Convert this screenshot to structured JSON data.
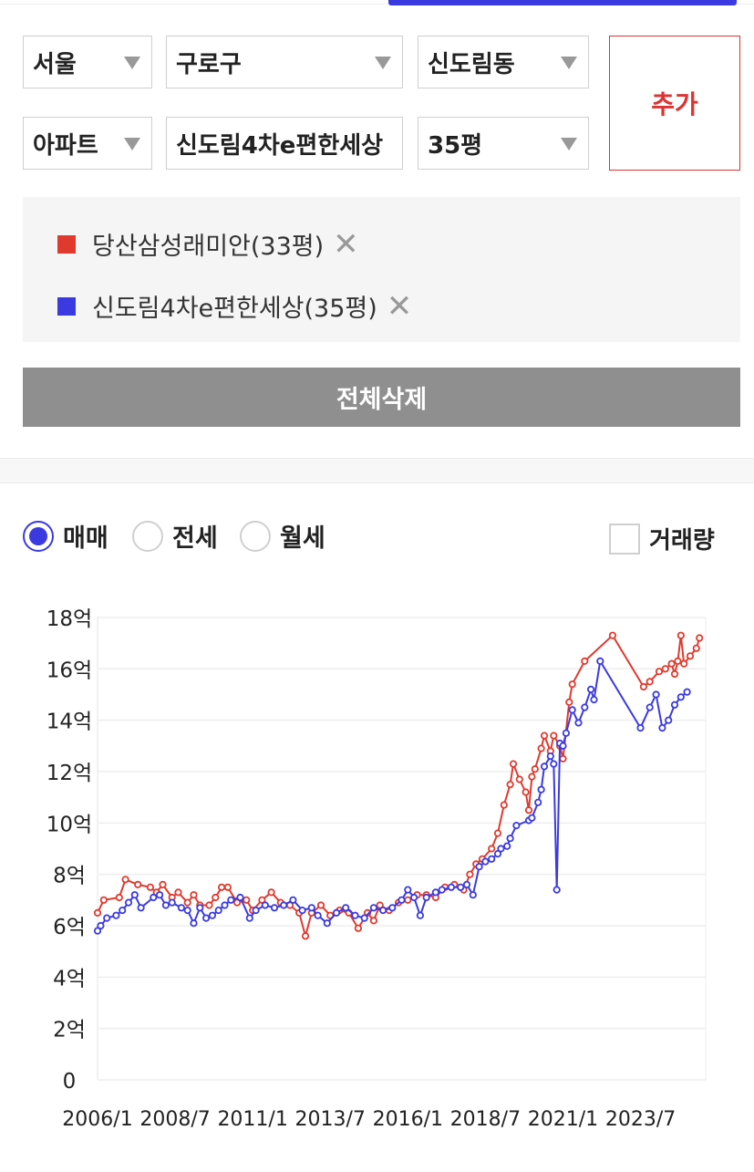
{
  "filters": {
    "city": "서울",
    "district": "구로구",
    "dong": "신도림동",
    "type": "아파트",
    "complex": "신도림4차e편한세상",
    "size": "35평"
  },
  "add_label": "추가",
  "selected": [
    {
      "label": "당산삼성래미안(33평)",
      "color": "#e03a2e"
    },
    {
      "label": "신도림4차e편한세상(35평)",
      "color": "#3a3ae0"
    }
  ],
  "delete_all_label": "전체삭제",
  "deal_types": {
    "sale": "매매",
    "jeonse": "전세",
    "wolse": "월세",
    "selected": "매매"
  },
  "volume_label": "거래량",
  "chart_data": {
    "type": "line",
    "ylabel": "",
    "xlabel": "",
    "ylim": [
      0,
      18
    ],
    "y_ticks": [
      "0",
      "2억",
      "4억",
      "6억",
      "8억",
      "10억",
      "12억",
      "14억",
      "16억",
      "18억"
    ],
    "x_ticks": [
      "2006/1",
      "2008/7",
      "2011/1",
      "2013/7",
      "2016/1",
      "2018/7",
      "2021/1",
      "2023/7"
    ],
    "x_range": [
      2006.0,
      2025.6
    ],
    "grid": true,
    "series": [
      {
        "name": "당산삼성래미안(33평)",
        "color": "#e03a2e",
        "points": [
          [
            2006.0,
            6.5
          ],
          [
            2006.2,
            7.0
          ],
          [
            2006.7,
            7.1
          ],
          [
            2006.9,
            7.8
          ],
          [
            2007.3,
            7.6
          ],
          [
            2007.7,
            7.5
          ],
          [
            2007.9,
            7.3
          ],
          [
            2008.1,
            7.6
          ],
          [
            2008.4,
            7.1
          ],
          [
            2008.6,
            7.3
          ],
          [
            2008.9,
            6.9
          ],
          [
            2009.1,
            7.2
          ],
          [
            2009.3,
            6.8
          ],
          [
            2009.6,
            6.8
          ],
          [
            2009.8,
            7.1
          ],
          [
            2010.0,
            7.5
          ],
          [
            2010.2,
            7.5
          ],
          [
            2010.5,
            6.9
          ],
          [
            2010.8,
            7.0
          ],
          [
            2011.0,
            6.6
          ],
          [
            2011.3,
            7.0
          ],
          [
            2011.6,
            7.3
          ],
          [
            2011.9,
            6.9
          ],
          [
            2012.2,
            6.8
          ],
          [
            2012.5,
            6.5
          ],
          [
            2012.7,
            5.6
          ],
          [
            2012.9,
            6.5
          ],
          [
            2013.2,
            6.8
          ],
          [
            2013.5,
            6.4
          ],
          [
            2013.8,
            6.6
          ],
          [
            2014.1,
            6.5
          ],
          [
            2014.4,
            5.9
          ],
          [
            2014.7,
            6.5
          ],
          [
            2014.9,
            6.2
          ],
          [
            2015.1,
            6.8
          ],
          [
            2015.4,
            6.6
          ],
          [
            2015.7,
            6.9
          ],
          [
            2016.0,
            7.0
          ],
          [
            2016.3,
            7.2
          ],
          [
            2016.6,
            7.2
          ],
          [
            2016.9,
            7.1
          ],
          [
            2017.2,
            7.5
          ],
          [
            2017.5,
            7.6
          ],
          [
            2017.8,
            7.4
          ],
          [
            2018.0,
            8.0
          ],
          [
            2018.2,
            8.4
          ],
          [
            2018.4,
            8.6
          ],
          [
            2018.7,
            9.0
          ],
          [
            2018.9,
            9.6
          ],
          [
            2019.1,
            10.7
          ],
          [
            2019.3,
            11.5
          ],
          [
            2019.4,
            12.3
          ],
          [
            2019.6,
            11.7
          ],
          [
            2019.8,
            11.2
          ],
          [
            2019.9,
            10.5
          ],
          [
            2020.0,
            11.8
          ],
          [
            2020.1,
            12.1
          ],
          [
            2020.3,
            12.9
          ],
          [
            2020.4,
            13.4
          ],
          [
            2020.6,
            12.8
          ],
          [
            2020.7,
            13.4
          ],
          [
            2020.9,
            13.0
          ],
          [
            2021.0,
            12.5
          ],
          [
            2021.2,
            14.7
          ],
          [
            2021.3,
            15.4
          ],
          [
            2021.7,
            16.3
          ],
          [
            2022.6,
            17.3
          ],
          [
            2023.6,
            15.3
          ],
          [
            2023.8,
            15.5
          ],
          [
            2024.1,
            15.9
          ],
          [
            2024.3,
            16.0
          ],
          [
            2024.5,
            16.2
          ],
          [
            2024.6,
            15.8
          ],
          [
            2024.7,
            16.3
          ],
          [
            2024.8,
            17.3
          ],
          [
            2024.9,
            16.2
          ],
          [
            2025.1,
            16.5
          ],
          [
            2025.3,
            16.8
          ],
          [
            2025.4,
            17.2
          ]
        ]
      },
      {
        "name": "신도림4차e편한세상(35평)",
        "color": "#3a3ae0",
        "points": [
          [
            2006.0,
            5.8
          ],
          [
            2006.1,
            6.0
          ],
          [
            2006.3,
            6.3
          ],
          [
            2006.6,
            6.4
          ],
          [
            2006.8,
            6.6
          ],
          [
            2007.0,
            6.9
          ],
          [
            2007.2,
            7.2
          ],
          [
            2007.4,
            6.7
          ],
          [
            2007.8,
            7.1
          ],
          [
            2008.0,
            7.2
          ],
          [
            2008.2,
            6.8
          ],
          [
            2008.4,
            6.9
          ],
          [
            2008.7,
            6.7
          ],
          [
            2008.9,
            6.6
          ],
          [
            2009.1,
            6.1
          ],
          [
            2009.3,
            6.7
          ],
          [
            2009.5,
            6.3
          ],
          [
            2009.7,
            6.4
          ],
          [
            2009.9,
            6.6
          ],
          [
            2010.1,
            6.8
          ],
          [
            2010.3,
            7.0
          ],
          [
            2010.6,
            7.1
          ],
          [
            2010.9,
            6.3
          ],
          [
            2011.1,
            6.6
          ],
          [
            2011.4,
            6.8
          ],
          [
            2011.7,
            6.7
          ],
          [
            2012.0,
            6.8
          ],
          [
            2012.3,
            7.0
          ],
          [
            2012.6,
            6.6
          ],
          [
            2012.9,
            6.7
          ],
          [
            2013.1,
            6.4
          ],
          [
            2013.4,
            6.1
          ],
          [
            2013.7,
            6.5
          ],
          [
            2014.0,
            6.7
          ],
          [
            2014.3,
            6.4
          ],
          [
            2014.6,
            6.3
          ],
          [
            2014.9,
            6.7
          ],
          [
            2015.2,
            6.6
          ],
          [
            2015.5,
            6.7
          ],
          [
            2015.8,
            7.0
          ],
          [
            2016.0,
            7.4
          ],
          [
            2016.2,
            7.1
          ],
          [
            2016.4,
            6.4
          ],
          [
            2016.6,
            7.1
          ],
          [
            2016.9,
            7.3
          ],
          [
            2017.1,
            7.4
          ],
          [
            2017.4,
            7.5
          ],
          [
            2017.7,
            7.5
          ],
          [
            2017.9,
            7.6
          ],
          [
            2018.1,
            7.2
          ],
          [
            2018.3,
            8.3
          ],
          [
            2018.5,
            8.5
          ],
          [
            2018.7,
            8.6
          ],
          [
            2018.9,
            8.8
          ],
          [
            2019.0,
            9.0
          ],
          [
            2019.2,
            9.1
          ],
          [
            2019.3,
            9.4
          ],
          [
            2019.5,
            9.9
          ],
          [
            2019.9,
            10.1
          ],
          [
            2020.0,
            10.2
          ],
          [
            2020.2,
            10.8
          ],
          [
            2020.3,
            11.3
          ],
          [
            2020.4,
            12.2
          ],
          [
            2020.6,
            12.6
          ],
          [
            2020.7,
            12.3
          ],
          [
            2020.8,
            7.4
          ],
          [
            2020.9,
            13.1
          ],
          [
            2021.0,
            13.0
          ],
          [
            2021.1,
            13.5
          ],
          [
            2021.3,
            14.4
          ],
          [
            2021.5,
            13.9
          ],
          [
            2021.7,
            14.5
          ],
          [
            2021.9,
            15.2
          ],
          [
            2022.0,
            14.8
          ],
          [
            2022.2,
            16.3
          ],
          [
            2023.5,
            13.7
          ],
          [
            2023.8,
            14.5
          ],
          [
            2024.0,
            15.0
          ],
          [
            2024.2,
            13.7
          ],
          [
            2024.4,
            14.0
          ],
          [
            2024.6,
            14.6
          ],
          [
            2024.8,
            14.9
          ],
          [
            2025.0,
            15.1
          ]
        ]
      }
    ]
  }
}
